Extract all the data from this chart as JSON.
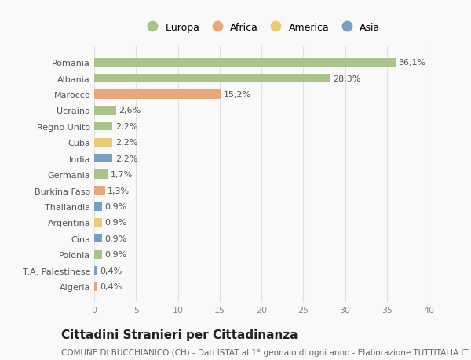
{
  "countries": [
    "Romania",
    "Albania",
    "Marocco",
    "Ucraina",
    "Regno Unito",
    "Cuba",
    "India",
    "Germania",
    "Burkina Faso",
    "Thailandia",
    "Argentina",
    "Cina",
    "Polonia",
    "T.A. Palestinese",
    "Algeria"
  ],
  "values": [
    36.1,
    28.3,
    15.2,
    2.6,
    2.2,
    2.2,
    2.2,
    1.7,
    1.3,
    0.9,
    0.9,
    0.9,
    0.9,
    0.4,
    0.4
  ],
  "labels": [
    "36,1%",
    "28,3%",
    "15,2%",
    "2,6%",
    "2,2%",
    "2,2%",
    "2,2%",
    "1,7%",
    "1,3%",
    "0,9%",
    "0,9%",
    "0,9%",
    "0,9%",
    "0,4%",
    "0,4%"
  ],
  "regions": [
    "Europa",
    "Europa",
    "Africa",
    "Europa",
    "Europa",
    "America",
    "Asia",
    "Europa",
    "Africa",
    "Asia",
    "America",
    "Asia",
    "Europa",
    "Asia",
    "Africa"
  ],
  "region_colors": {
    "Europa": "#a8c48a",
    "Africa": "#e8a87c",
    "America": "#e8cc7a",
    "Asia": "#7a9fc4"
  },
  "legend_order": [
    "Europa",
    "Africa",
    "America",
    "Asia"
  ],
  "title": "Cittadini Stranieri per Cittadinanza",
  "subtitle": "COMUNE DI BUCCHIANICO (CH) - Dati ISTAT al 1° gennaio di ogni anno - Elaborazione TUTTITALIA.IT",
  "xlim": [
    0,
    40
  ],
  "xticks": [
    0,
    5,
    10,
    15,
    20,
    25,
    30,
    35,
    40
  ],
  "background_color": "#f9f9f9",
  "grid_color": "#e0e0e0",
  "bar_height": 0.55,
  "title_fontsize": 11,
  "subtitle_fontsize": 7.5,
  "label_fontsize": 8,
  "tick_fontsize": 8,
  "legend_fontsize": 9
}
